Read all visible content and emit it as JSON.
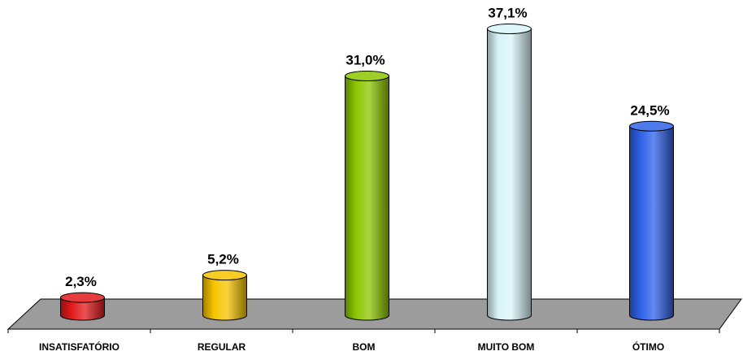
{
  "chart_data": {
    "type": "bar",
    "style": "3d-cylinder",
    "categories": [
      "INSATISFATÓRIO",
      "REGULAR",
      "BOM",
      "MUITO BOM",
      "ÓTIMO"
    ],
    "values": [
      2.3,
      5.2,
      31.0,
      37.1,
      24.5
    ],
    "value_labels": [
      "2,3%",
      "5,2%",
      "31,0%",
      "37,1%",
      "24,5%"
    ],
    "colors": [
      "#E31A1C",
      "#F5C400",
      "#8DC700",
      "#D8F4F8",
      "#2F62E8"
    ],
    "floor_color": "#9C9C9C",
    "title": "",
    "xlabel": "",
    "ylabel": "",
    "grid": false,
    "legend": "none"
  }
}
